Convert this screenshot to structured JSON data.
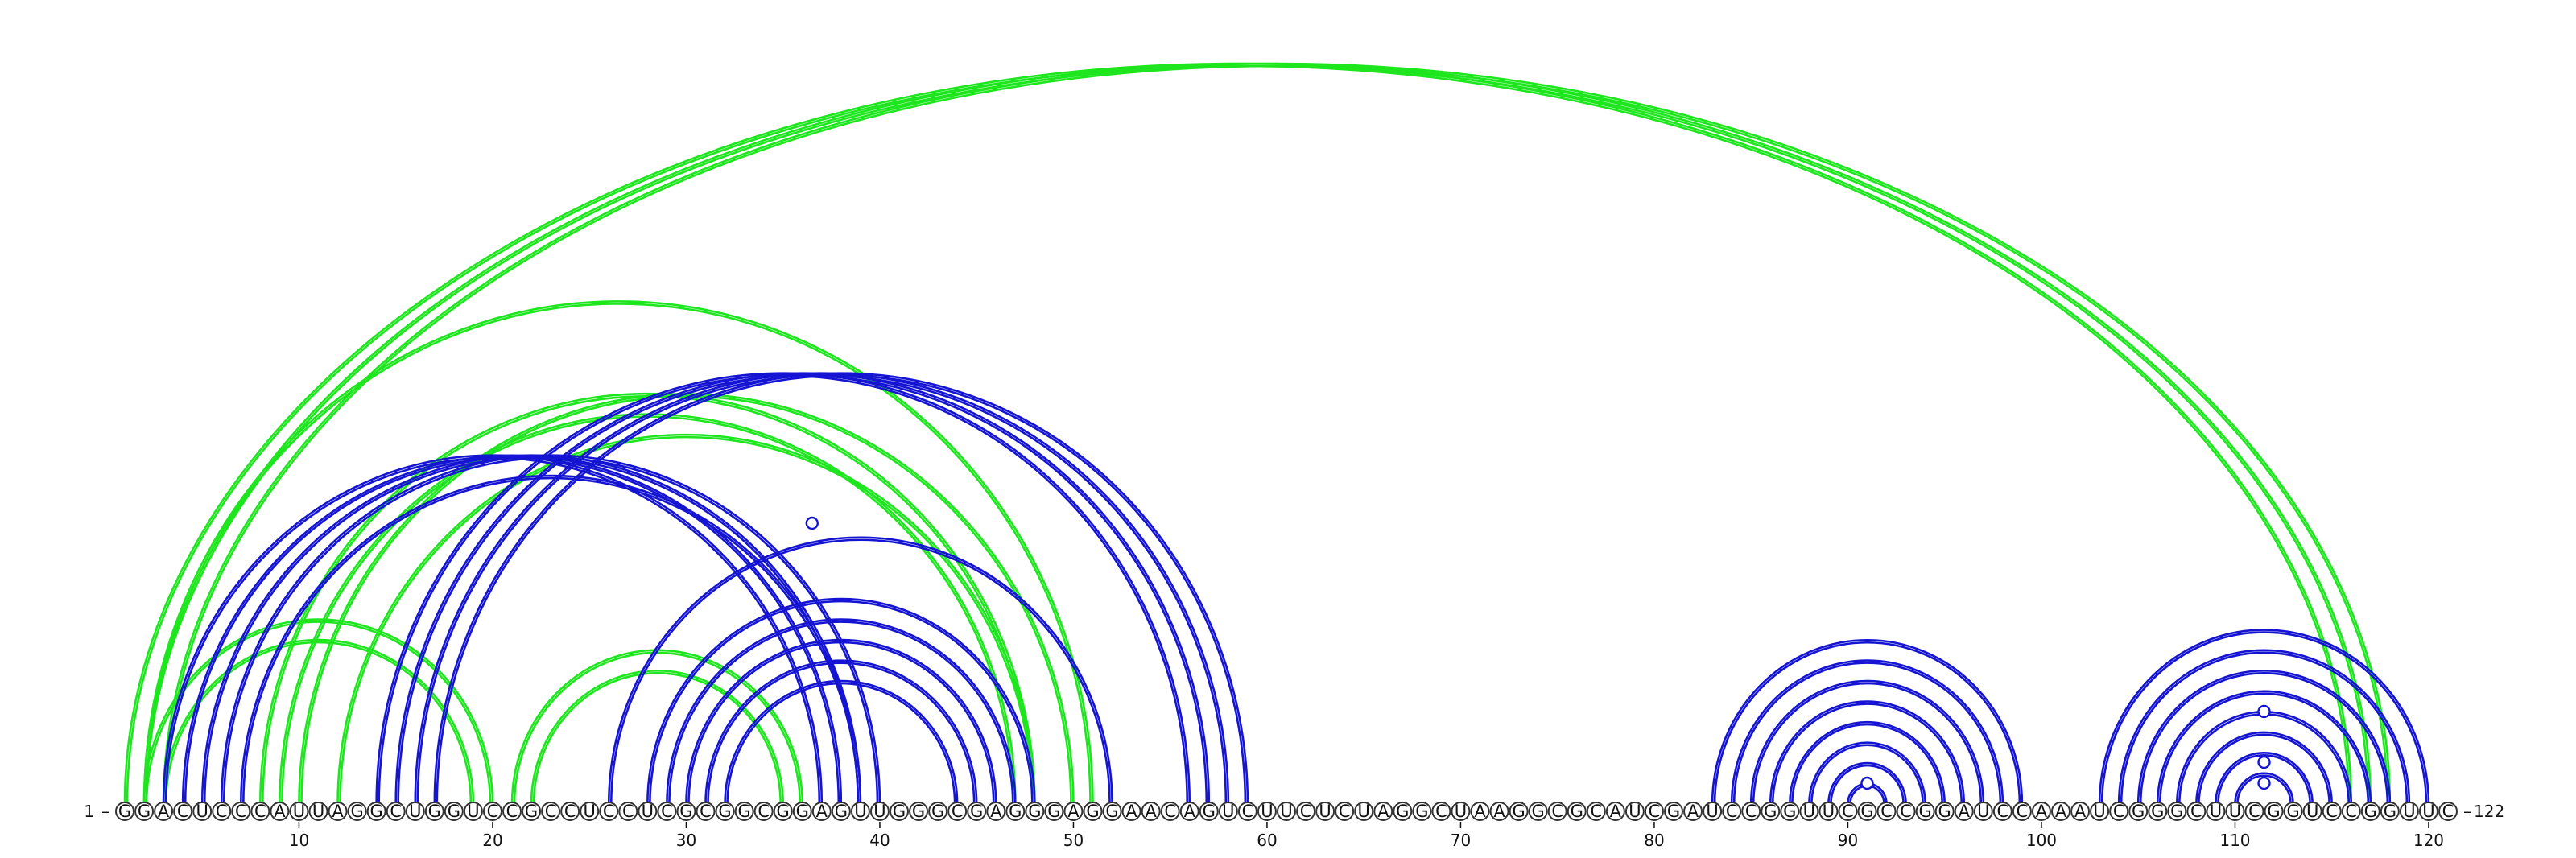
{
  "sequence": "GGACUCCCAUUAGGCUGGUCCGCCUCCUCGCGGCGGAGUUGGGCGAGGGAGGAACAGUCUUCUCUAGGCUAAGGCGCAUCGAUCCGGUUCGCCGGAUCCAAAUCGGGCUUCGGUCCGGUUC",
  "start_label": "1",
  "end_label": "122",
  "ticks": [
    10,
    20,
    30,
    40,
    50,
    60,
    70,
    80,
    90,
    100,
    110,
    120
  ],
  "colors": {
    "blue": "#1414d2",
    "green": "#1ee61e"
  },
  "pairs": {
    "green": [
      [
        1,
        116
      ],
      [
        2,
        117
      ],
      [
        3,
        118
      ],
      [
        2,
        20
      ],
      [
        3,
        19
      ],
      [
        8,
        48
      ],
      [
        9,
        47
      ],
      [
        10,
        50
      ],
      [
        21,
        36
      ],
      [
        22,
        35
      ],
      [
        2,
        51
      ],
      [
        12,
        48
      ]
    ],
    "blue": [
      [
        3,
        37
      ],
      [
        4,
        38
      ],
      [
        5,
        39
      ],
      [
        6,
        40
      ],
      [
        7,
        39
      ],
      [
        14,
        56
      ],
      [
        15,
        57
      ],
      [
        16,
        58
      ],
      [
        17,
        59
      ],
      [
        26,
        52
      ],
      [
        28,
        48
      ],
      [
        29,
        47
      ],
      [
        30,
        46
      ],
      [
        31,
        45
      ],
      [
        32,
        44
      ],
      [
        83,
        99
      ],
      [
        84,
        98
      ],
      [
        85,
        97
      ],
      [
        86,
        96
      ],
      [
        87,
        95
      ],
      [
        88,
        94
      ],
      [
        89,
        93
      ],
      [
        90,
        92
      ],
      [
        103,
        120
      ],
      [
        104,
        119
      ],
      [
        105,
        118
      ],
      [
        106,
        117
      ],
      [
        107,
        116
      ],
      [
        108,
        115
      ],
      [
        109,
        114
      ],
      [
        110,
        113
      ]
    ]
  },
  "markers": [
    {
      "position": 36.5,
      "color": "blue",
      "ring": "outer"
    },
    {
      "position": 91,
      "color": "blue",
      "ring": "inner"
    },
    {
      "position": 111.5,
      "color": "blue",
      "ring": "inner"
    },
    {
      "position": 111.5,
      "color": "blue",
      "ring": "mid"
    },
    {
      "position": 111.5,
      "color": "blue",
      "ring": "outer"
    }
  ]
}
